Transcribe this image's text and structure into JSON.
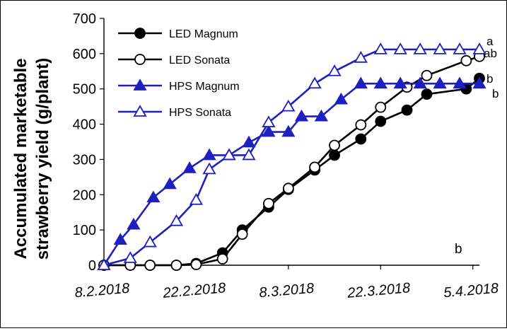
{
  "chart_data": {
    "type": "line",
    "title": "",
    "panel_label": "b",
    "xlabel": "",
    "ylabel": "Accumulated marketable strawberry yield (g/plant)",
    "ylabel_lines": [
      "Accumulated marketable",
      "strawberry yield (g/plant)"
    ],
    "xlim_days": [
      0,
      57
    ],
    "ylim": [
      0,
      700
    ],
    "yticks": [
      0,
      100,
      200,
      300,
      400,
      500,
      600,
      700
    ],
    "xticks": [
      {
        "day": 0,
        "label": "8.2.2018"
      },
      {
        "day": 14,
        "label": "22.2.2018"
      },
      {
        "day": 28,
        "label": "8.3.2018"
      },
      {
        "day": 42,
        "label": "22.3.2018"
      },
      {
        "day": 56,
        "label": "5.4.2018"
      }
    ],
    "grid": false,
    "legend_position": "top-left",
    "colors": {
      "LED": "#000000",
      "HPS": "#1f1fbf"
    },
    "series": [
      {
        "name": "LED Magnum",
        "color": "#000000",
        "marker": "circle",
        "filled": true,
        "x": [
          0,
          4,
          7,
          11,
          14,
          18,
          21,
          25,
          28,
          32,
          35,
          39,
          42,
          46,
          49,
          55,
          57
        ],
        "y": [
          0,
          0,
          0,
          0,
          5,
          35,
          100,
          165,
          215,
          270,
          312,
          358,
          408,
          440,
          485,
          500,
          530
        ],
        "significance": "b"
      },
      {
        "name": "LED Sonata",
        "color": "#000000",
        "marker": "circle",
        "filled": false,
        "x": [
          0,
          4,
          7,
          11,
          14,
          18,
          21,
          25,
          28,
          32,
          35,
          39,
          42,
          46,
          49,
          55,
          57
        ],
        "y": [
          0,
          0,
          0,
          0,
          2,
          18,
          88,
          175,
          218,
          278,
          340,
          398,
          448,
          505,
          538,
          580,
          592
        ],
        "significance": "ab"
      },
      {
        "name": "HPS Magnum",
        "color": "#1f1fbf",
        "marker": "triangle",
        "filled": true,
        "x": [
          0,
          2.5,
          4.5,
          7.5,
          10,
          13,
          16,
          19,
          22,
          25,
          28,
          30,
          33,
          36,
          39,
          42,
          45,
          48,
          51,
          54,
          57
        ],
        "y": [
          0,
          72,
          115,
          192,
          230,
          275,
          312,
          312,
          348,
          378,
          378,
          422,
          422,
          470,
          515,
          515,
          515,
          515,
          515,
          515,
          515
        ],
        "significance": "b"
      },
      {
        "name": "HPS Sonata",
        "color": "#1f1fbf",
        "marker": "triangle",
        "filled": false,
        "x": [
          0,
          4,
          7,
          11,
          14,
          16,
          19,
          22,
          25,
          28,
          32,
          35,
          39,
          42,
          45,
          48,
          51,
          54,
          57
        ],
        "y": [
          0,
          20,
          65,
          125,
          185,
          272,
          312,
          312,
          405,
          450,
          515,
          550,
          588,
          612,
          612,
          612,
          612,
          612,
          612
        ],
        "significance": "a"
      }
    ]
  }
}
